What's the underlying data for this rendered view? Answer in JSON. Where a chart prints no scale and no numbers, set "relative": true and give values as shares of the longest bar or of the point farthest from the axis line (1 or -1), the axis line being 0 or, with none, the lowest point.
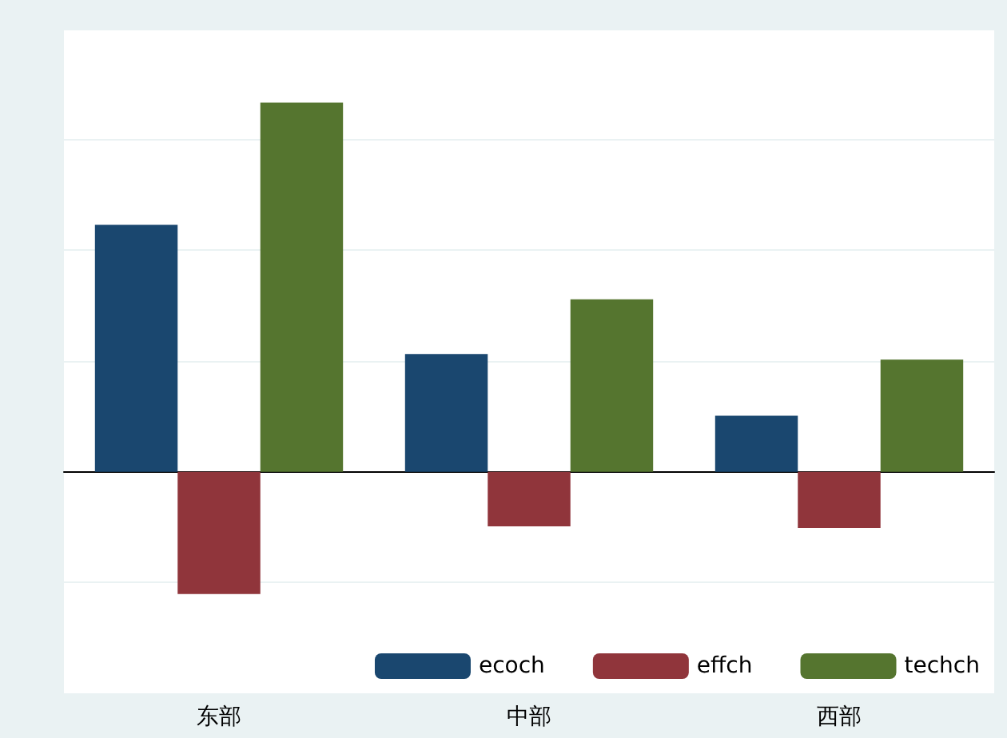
{
  "chart_data": {
    "type": "bar",
    "relative": true,
    "categories": [
      "东部",
      "中部",
      "西部"
    ],
    "series": [
      {
        "name": "ecoch",
        "color": "#1a476f",
        "values": [
          0.669,
          0.319,
          0.152
        ]
      },
      {
        "name": "effch",
        "color": "#90353b",
        "values": [
          -0.331,
          -0.148,
          -0.152
        ]
      },
      {
        "name": "techch",
        "color": "#55752f",
        "values": [
          1,
          0.467,
          0.304
        ]
      }
    ],
    "grid": "y",
    "legend": "bottom right"
  }
}
